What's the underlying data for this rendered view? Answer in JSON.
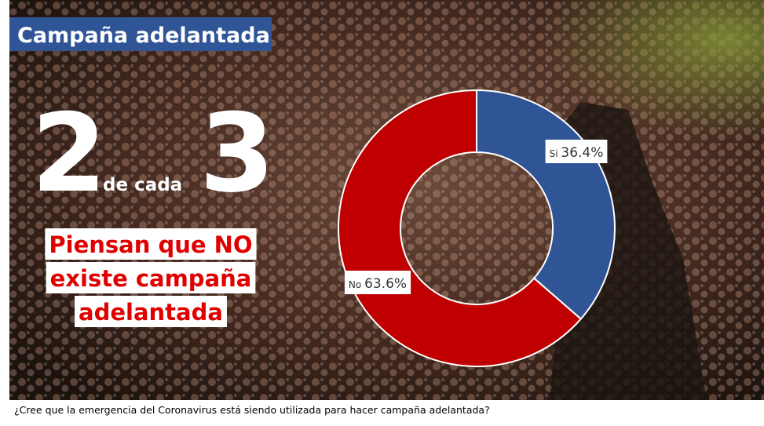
{
  "chart_data": {
    "type": "donut",
    "title": "Campaña adelantada",
    "categories": [
      "Si",
      "No"
    ],
    "values": [
      36.4,
      63.6
    ],
    "value_labels": [
      "36.4%",
      "63.6%"
    ],
    "colors": [
      "#2f5597",
      "#c00000"
    ],
    "annotations": [
      "2",
      "de cada",
      "3",
      "Piensan que NO",
      "existe campaña",
      "adelantada"
    ],
    "caption": "¿Cree que la emergencia del Coronavirus  está siendo utilizada para hacer campaña adelantada?"
  }
}
